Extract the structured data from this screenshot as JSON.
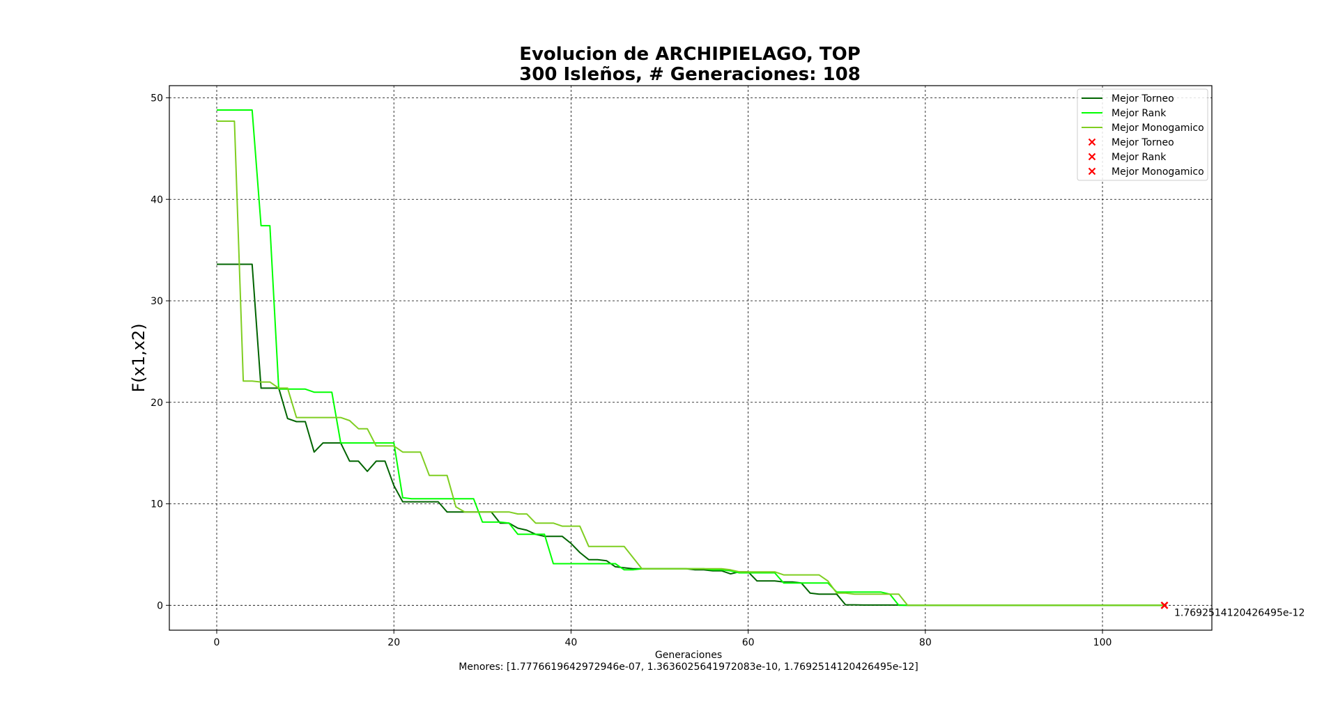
{
  "chart_data": {
    "type": "line",
    "title_line1": "Evolucion de ARCHIPIELAGO, TOP",
    "title_line2": "300 Isleños, # Generaciones: 108",
    "xlabel": "Generaciones",
    "xlabel_sub": "Menores: [1.7776619642972946e-07, 1.3636025641972083e-10, 1.7692514120426495e-12]",
    "ylabel": "F(x1,x2)",
    "xlim": [
      -5.35,
      112.35
    ],
    "ylim": [
      -2.45,
      51.2
    ],
    "x_ticks": [
      0,
      20,
      40,
      60,
      80,
      100
    ],
    "y_ticks": [
      0,
      10,
      20,
      30,
      40,
      50
    ],
    "grid": true,
    "legend_position": "top-right",
    "series": [
      {
        "name": "Mejor Torneo",
        "color": "#006400",
        "points": [
          [
            0,
            33.6
          ],
          [
            1,
            33.6
          ],
          [
            2,
            33.6
          ],
          [
            3,
            33.6
          ],
          [
            4,
            33.6
          ],
          [
            5,
            21.4
          ],
          [
            6,
            21.4
          ],
          [
            7,
            21.4
          ],
          [
            8,
            18.4
          ],
          [
            9,
            18.1
          ],
          [
            10,
            18.1
          ],
          [
            11,
            15.1
          ],
          [
            12,
            16.0
          ],
          [
            13,
            16.0
          ],
          [
            14,
            16.0
          ],
          [
            15,
            14.2
          ],
          [
            16,
            14.2
          ],
          [
            17,
            13.2
          ],
          [
            18,
            14.2
          ],
          [
            19,
            14.2
          ],
          [
            20,
            11.8
          ],
          [
            21,
            10.2
          ],
          [
            22,
            10.2
          ],
          [
            23,
            10.2
          ],
          [
            24,
            10.2
          ],
          [
            25,
            10.2
          ],
          [
            26,
            9.2
          ],
          [
            27,
            9.2
          ],
          [
            28,
            9.2
          ],
          [
            29,
            9.2
          ],
          [
            30,
            9.2
          ],
          [
            31,
            9.2
          ],
          [
            32,
            8.1
          ],
          [
            33,
            8.1
          ],
          [
            34,
            7.6
          ],
          [
            35,
            7.4
          ],
          [
            36,
            7.0
          ],
          [
            37,
            6.8
          ],
          [
            38,
            6.8
          ],
          [
            39,
            6.8
          ],
          [
            40,
            6.1
          ],
          [
            41,
            5.2
          ],
          [
            42,
            4.5
          ],
          [
            43,
            4.5
          ],
          [
            44,
            4.4
          ],
          [
            45,
            3.8
          ],
          [
            46,
            3.7
          ],
          [
            47,
            3.6
          ],
          [
            48,
            3.6
          ],
          [
            49,
            3.6
          ],
          [
            50,
            3.6
          ],
          [
            51,
            3.6
          ],
          [
            52,
            3.6
          ],
          [
            53,
            3.6
          ],
          [
            54,
            3.5
          ],
          [
            55,
            3.5
          ],
          [
            56,
            3.4
          ],
          [
            57,
            3.4
          ],
          [
            58,
            3.1
          ],
          [
            59,
            3.3
          ],
          [
            60,
            3.3
          ],
          [
            61,
            2.4
          ],
          [
            62,
            2.4
          ],
          [
            63,
            2.4
          ],
          [
            64,
            2.3
          ],
          [
            65,
            2.3
          ],
          [
            66,
            2.2
          ],
          [
            67,
            1.2
          ],
          [
            68,
            1.1
          ],
          [
            69,
            1.1
          ],
          [
            70,
            1.1
          ],
          [
            71,
            0.05
          ],
          [
            72,
            0.05
          ],
          [
            73,
            0.03
          ],
          [
            74,
            0.03
          ],
          [
            75,
            0.03
          ],
          [
            76,
            0.03
          ],
          [
            77,
            0.03
          ],
          [
            78,
            0.0
          ],
          [
            80,
            0.0
          ],
          [
            90,
            0.0
          ],
          [
            100,
            0.0
          ],
          [
            107,
            0.0
          ]
        ]
      },
      {
        "name": "Mejor Rank",
        "color": "#00ff00",
        "points": [
          [
            0,
            48.8
          ],
          [
            1,
            48.8
          ],
          [
            2,
            48.8
          ],
          [
            3,
            48.8
          ],
          [
            4,
            48.8
          ],
          [
            5,
            37.4
          ],
          [
            6,
            37.4
          ],
          [
            7,
            21.3
          ],
          [
            8,
            21.3
          ],
          [
            9,
            21.3
          ],
          [
            10,
            21.3
          ],
          [
            11,
            21.0
          ],
          [
            12,
            21.0
          ],
          [
            13,
            21.0
          ],
          [
            14,
            16.0
          ],
          [
            15,
            16.0
          ],
          [
            16,
            16.0
          ],
          [
            17,
            16.0
          ],
          [
            18,
            16.0
          ],
          [
            19,
            16.0
          ],
          [
            20,
            16.0
          ],
          [
            21,
            10.6
          ],
          [
            22,
            10.5
          ],
          [
            23,
            10.5
          ],
          [
            24,
            10.5
          ],
          [
            25,
            10.5
          ],
          [
            26,
            10.5
          ],
          [
            27,
            10.5
          ],
          [
            28,
            10.5
          ],
          [
            29,
            10.5
          ],
          [
            30,
            8.2
          ],
          [
            31,
            8.2
          ],
          [
            32,
            8.2
          ],
          [
            33,
            8.1
          ],
          [
            34,
            7.0
          ],
          [
            35,
            7.0
          ],
          [
            36,
            7.0
          ],
          [
            37,
            7.0
          ],
          [
            38,
            4.1
          ],
          [
            39,
            4.1
          ],
          [
            40,
            4.1
          ],
          [
            41,
            4.1
          ],
          [
            42,
            4.1
          ],
          [
            43,
            4.1
          ],
          [
            44,
            4.1
          ],
          [
            45,
            4.1
          ],
          [
            46,
            3.5
          ],
          [
            47,
            3.5
          ],
          [
            48,
            3.6
          ],
          [
            49,
            3.6
          ],
          [
            50,
            3.6
          ],
          [
            51,
            3.6
          ],
          [
            52,
            3.6
          ],
          [
            53,
            3.6
          ],
          [
            54,
            3.6
          ],
          [
            55,
            3.6
          ],
          [
            56,
            3.5
          ],
          [
            57,
            3.5
          ],
          [
            58,
            3.4
          ],
          [
            59,
            3.2
          ],
          [
            60,
            3.2
          ],
          [
            61,
            3.2
          ],
          [
            62,
            3.2
          ],
          [
            63,
            3.2
          ],
          [
            64,
            2.2
          ],
          [
            65,
            2.2
          ],
          [
            66,
            2.2
          ],
          [
            67,
            2.2
          ],
          [
            68,
            2.2
          ],
          [
            69,
            2.2
          ],
          [
            70,
            1.3
          ],
          [
            71,
            1.3
          ],
          [
            72,
            1.3
          ],
          [
            73,
            1.3
          ],
          [
            74,
            1.3
          ],
          [
            75,
            1.3
          ],
          [
            76,
            1.1
          ],
          [
            77,
            0.0
          ],
          [
            78,
            0.0
          ],
          [
            80,
            0.0
          ],
          [
            90,
            0.0
          ],
          [
            100,
            0.0
          ],
          [
            107,
            0.0
          ]
        ]
      },
      {
        "name": "Mejor Monogamico",
        "color": "#7fce21",
        "points": [
          [
            0,
            47.7
          ],
          [
            1,
            47.7
          ],
          [
            2,
            47.7
          ],
          [
            3,
            22.1
          ],
          [
            4,
            22.1
          ],
          [
            5,
            22.0
          ],
          [
            6,
            22.0
          ],
          [
            7,
            21.4
          ],
          [
            8,
            21.4
          ],
          [
            9,
            18.5
          ],
          [
            10,
            18.5
          ],
          [
            11,
            18.5
          ],
          [
            12,
            18.5
          ],
          [
            13,
            18.5
          ],
          [
            14,
            18.5
          ],
          [
            15,
            18.2
          ],
          [
            16,
            17.4
          ],
          [
            17,
            17.4
          ],
          [
            18,
            15.7
          ],
          [
            19,
            15.7
          ],
          [
            20,
            15.7
          ],
          [
            21,
            15.1
          ],
          [
            22,
            15.1
          ],
          [
            23,
            15.1
          ],
          [
            24,
            12.8
          ],
          [
            25,
            12.8
          ],
          [
            26,
            12.8
          ],
          [
            27,
            9.7
          ],
          [
            28,
            9.2
          ],
          [
            29,
            9.2
          ],
          [
            30,
            9.2
          ],
          [
            31,
            9.2
          ],
          [
            32,
            9.2
          ],
          [
            33,
            9.2
          ],
          [
            34,
            9.0
          ],
          [
            35,
            9.0
          ],
          [
            36,
            8.1
          ],
          [
            37,
            8.1
          ],
          [
            38,
            8.1
          ],
          [
            39,
            7.8
          ],
          [
            40,
            7.8
          ],
          [
            41,
            7.8
          ],
          [
            42,
            5.8
          ],
          [
            43,
            5.8
          ],
          [
            44,
            5.8
          ],
          [
            45,
            5.8
          ],
          [
            46,
            5.8
          ],
          [
            47,
            4.7
          ],
          [
            48,
            3.6
          ],
          [
            49,
            3.6
          ],
          [
            50,
            3.6
          ],
          [
            51,
            3.6
          ],
          [
            52,
            3.6
          ],
          [
            53,
            3.6
          ],
          [
            54,
            3.6
          ],
          [
            55,
            3.6
          ],
          [
            56,
            3.6
          ],
          [
            57,
            3.6
          ],
          [
            58,
            3.5
          ],
          [
            59,
            3.3
          ],
          [
            60,
            3.3
          ],
          [
            61,
            3.3
          ],
          [
            62,
            3.3
          ],
          [
            63,
            3.3
          ],
          [
            64,
            3.0
          ],
          [
            65,
            3.0
          ],
          [
            66,
            3.0
          ],
          [
            67,
            3.0
          ],
          [
            68,
            3.0
          ],
          [
            69,
            2.4
          ],
          [
            70,
            1.2
          ],
          [
            71,
            1.2
          ],
          [
            72,
            1.1
          ],
          [
            73,
            1.1
          ],
          [
            74,
            1.1
          ],
          [
            75,
            1.1
          ],
          [
            76,
            1.1
          ],
          [
            77,
            1.1
          ],
          [
            78,
            0.0
          ],
          [
            80,
            0.0
          ],
          [
            90,
            0.0
          ],
          [
            100,
            0.0
          ],
          [
            107,
            0.0
          ]
        ]
      }
    ],
    "markers": [
      {
        "name": "Mejor Torneo",
        "x": 107,
        "y": 1.7776619642972946e-07,
        "color": "#ff0000"
      },
      {
        "name": "Mejor Rank",
        "x": 107,
        "y": 1.3636025641972083e-10,
        "color": "#ff0000"
      },
      {
        "name": "Mejor Monogamico",
        "x": 107,
        "y": 1.7692514120426495e-12,
        "color": "#ff0000"
      }
    ],
    "annotation": {
      "text": "1.7692514120426495e-12",
      "x": 107,
      "y": 0
    }
  }
}
